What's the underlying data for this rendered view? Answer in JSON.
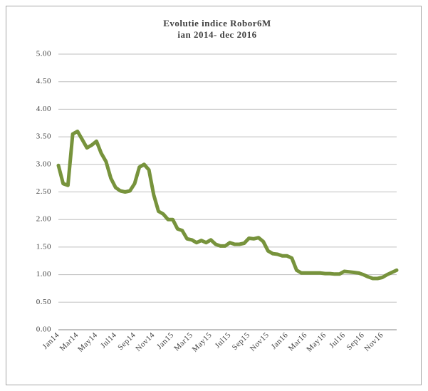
{
  "chart_data": {
    "type": "line",
    "title": "Evolutie indice Robor6M",
    "subtitle": "ian 2014- dec 2016",
    "categories": [
      "Jan14",
      null,
      null,
      null,
      "Mar14",
      null,
      null,
      null,
      "May14",
      null,
      null,
      null,
      "Jul14",
      null,
      null,
      null,
      "Sep14",
      null,
      null,
      null,
      "Nov14",
      null,
      null,
      null,
      "Jan15",
      null,
      null,
      null,
      "Mar15",
      null,
      null,
      null,
      "May15",
      null,
      null,
      null,
      "Jul15",
      null,
      null,
      null,
      "Sep15",
      null,
      null,
      null,
      "Nov15",
      null,
      null,
      null,
      "Jan16",
      null,
      null,
      null,
      "Mar16",
      null,
      null,
      null,
      "May16",
      null,
      null,
      null,
      "Jul16",
      null,
      null,
      null,
      "Sep16",
      null,
      null,
      null,
      "Nov16",
      null,
      null,
      null
    ],
    "values": [
      2.98,
      2.65,
      2.62,
      3.55,
      3.6,
      3.45,
      3.3,
      3.35,
      3.42,
      3.2,
      3.05,
      2.75,
      2.58,
      2.52,
      2.5,
      2.52,
      2.65,
      2.95,
      3.0,
      2.9,
      2.45,
      2.15,
      2.1,
      2.0,
      2.0,
      1.83,
      1.8,
      1.65,
      1.63,
      1.58,
      1.62,
      1.58,
      1.63,
      1.55,
      1.52,
      1.52,
      1.58,
      1.55,
      1.55,
      1.57,
      1.66,
      1.65,
      1.67,
      1.6,
      1.43,
      1.38,
      1.37,
      1.34,
      1.34,
      1.3,
      1.08,
      1.03,
      1.03,
      1.03,
      1.03,
      1.03,
      1.02,
      1.02,
      1.01,
      1.01,
      1.06,
      1.05,
      1.04,
      1.03,
      1.0,
      0.96,
      0.93,
      0.93,
      0.95,
      1.0,
      1.04,
      1.08
    ],
    "color": "#77933c",
    "ylim": [
      0,
      5
    ],
    "yticks": [
      {
        "value": 0,
        "label": "0.00"
      },
      {
        "value": 0.5,
        "label": "0.50"
      },
      {
        "value": 1,
        "label": "1.00"
      },
      {
        "value": 1.5,
        "label": "1.50"
      },
      {
        "value": 2,
        "label": "2.00"
      },
      {
        "value": 2.5,
        "label": "2.50"
      },
      {
        "value": 3,
        "label": "3.00"
      },
      {
        "value": 3.5,
        "label": "3.50"
      },
      {
        "value": 4,
        "label": "4.00"
      },
      {
        "value": 4.5,
        "label": "4.50"
      },
      {
        "value": 5,
        "label": "5.00"
      }
    ],
    "grid": true
  }
}
